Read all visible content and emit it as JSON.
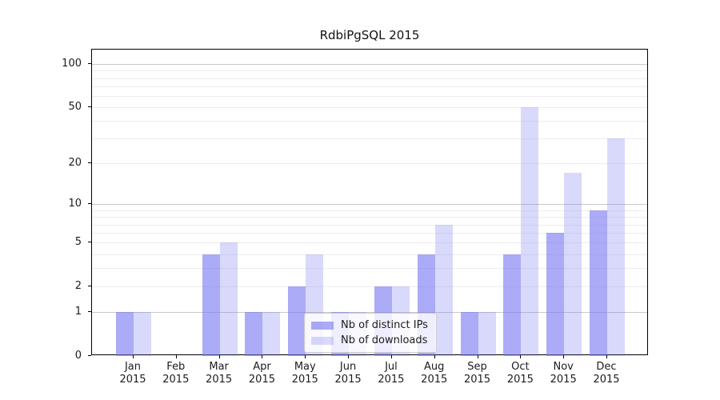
{
  "chart_data": {
    "type": "bar",
    "title": "RdbiPgSQL 2015",
    "categories": [
      {
        "month": "Jan",
        "year": "2015"
      },
      {
        "month": "Feb",
        "year": "2015"
      },
      {
        "month": "Mar",
        "year": "2015"
      },
      {
        "month": "Apr",
        "year": "2015"
      },
      {
        "month": "May",
        "year": "2015"
      },
      {
        "month": "Jun",
        "year": "2015"
      },
      {
        "month": "Jul",
        "year": "2015"
      },
      {
        "month": "Aug",
        "year": "2015"
      },
      {
        "month": "Sep",
        "year": "2015"
      },
      {
        "month": "Oct",
        "year": "2015"
      },
      {
        "month": "Nov",
        "year": "2015"
      },
      {
        "month": "Dec",
        "year": "2015"
      }
    ],
    "series": [
      {
        "name": "Nb of distinct IPs",
        "color": "rgba(115,115,242,0.60)",
        "color_hex_on_white": "#abaaf7",
        "values": [
          1,
          0,
          4,
          1,
          2,
          1,
          2,
          4,
          1,
          4,
          6,
          9
        ]
      },
      {
        "name": "Nb of downloads",
        "color": "rgba(115,115,242,0.27)",
        "color_hex_on_white": "#d9d9fb",
        "values": [
          1,
          0,
          5,
          1,
          4,
          1,
          2,
          7,
          1,
          50,
          17,
          30
        ]
      }
    ],
    "y_scale": "log1p",
    "ylim": [
      0,
      126
    ],
    "y_ticks": [
      0,
      1,
      2,
      5,
      10,
      20,
      50,
      100
    ],
    "y_tick_labels": [
      "0",
      "1",
      "2",
      "5",
      "10",
      "20",
      "50",
      "100"
    ],
    "grid_major_values": [
      1,
      10,
      100
    ],
    "grid_minor_values": [
      2,
      3,
      4,
      5,
      6,
      7,
      8,
      9,
      20,
      30,
      40,
      50,
      60,
      70,
      80,
      90
    ],
    "grid": "horizontal",
    "legend_position": "lower center inside",
    "xlabel": "",
    "ylabel": ""
  }
}
